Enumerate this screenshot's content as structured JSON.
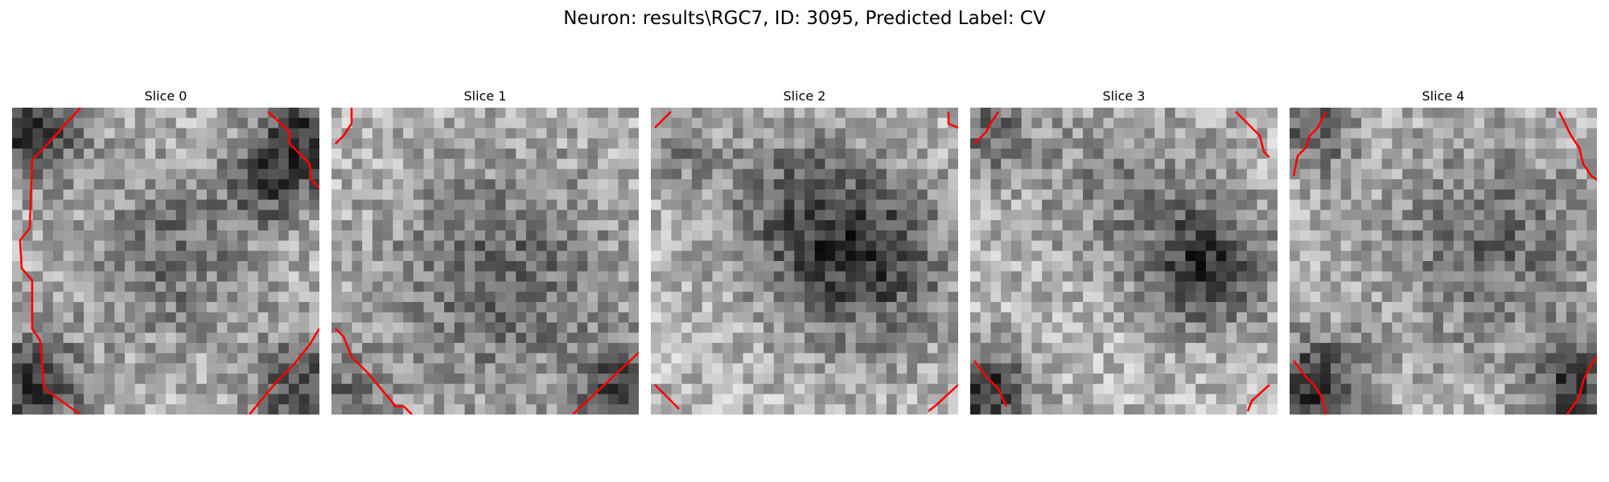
{
  "figure": {
    "title": "Neuron: results\\RGC7, ID: 3095, Predicted Label: CV"
  },
  "panels": [
    {
      "title": "Slice 0"
    },
    {
      "title": "Slice 1"
    },
    {
      "title": "Slice 2"
    },
    {
      "title": "Slice 3"
    },
    {
      "title": "Slice 4"
    }
  ],
  "colors": {
    "contour": "#ff0000",
    "colormap": "gray"
  }
}
